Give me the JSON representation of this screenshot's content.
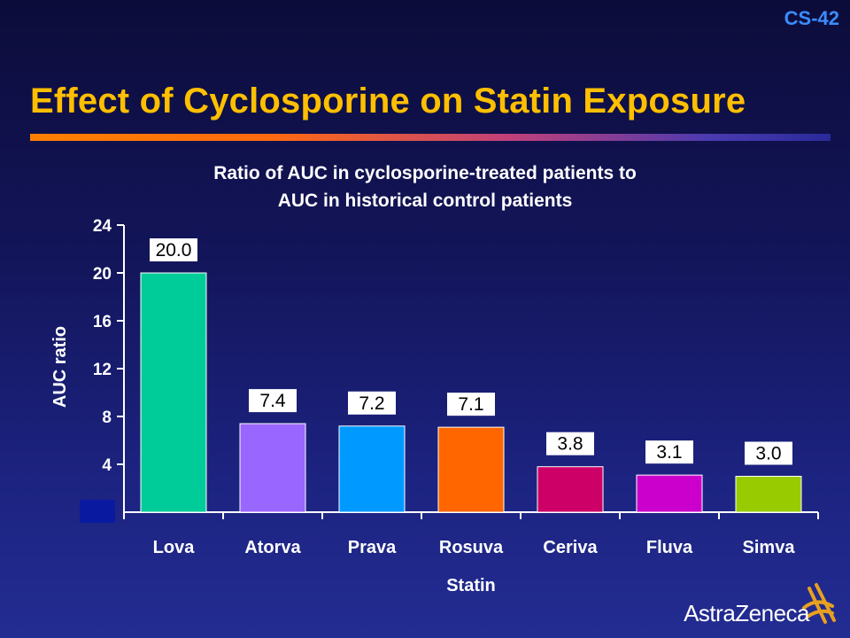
{
  "slide_id": "CS-42",
  "title": "Effect of Cyclosporine on Statin Exposure",
  "subtitle_lines": [
    "Ratio of AUC in cyclosporine-treated patients to",
    "AUC in historical control patients"
  ],
  "logo_text": "AstraZeneca",
  "colors": {
    "title": "#ffbf00",
    "slide_id": "#3a8cff",
    "value_label_bg": "#ffffff"
  },
  "chart_data": {
    "type": "bar",
    "xlabel": "Statin",
    "ylabel": "AUC ratio",
    "ylim": [
      0,
      24
    ],
    "yticks": [
      4,
      8,
      12,
      16,
      20,
      24
    ],
    "grid": false,
    "categories": [
      "Lova",
      "Atorva",
      "Prava",
      "Rosuva",
      "Ceriva",
      "Fluva",
      "Simva"
    ],
    "values": [
      20.0,
      7.4,
      7.2,
      7.1,
      3.8,
      3.1,
      3.0
    ],
    "value_labels": [
      "20.0",
      "7.4",
      "7.2",
      "7.1",
      "3.8",
      "3.1",
      "3.0"
    ],
    "bar_colors": [
      "#00cc99",
      "#9966ff",
      "#0099ff",
      "#ff6600",
      "#cc0066",
      "#cc00cc",
      "#99cc00"
    ]
  }
}
